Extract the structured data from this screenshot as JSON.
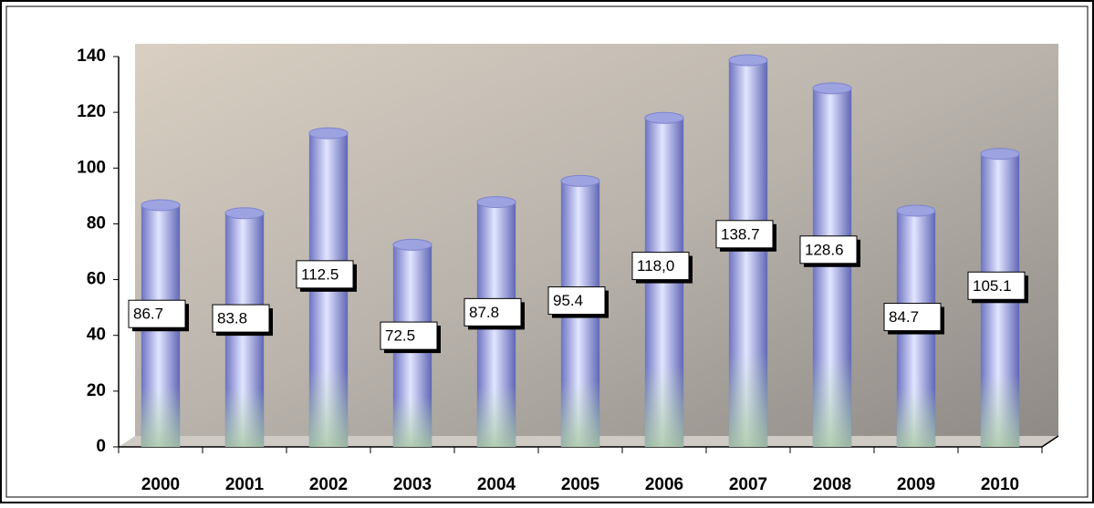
{
  "chart_data": {
    "type": "bar",
    "categories": [
      "2000",
      "2001",
      "2002",
      "2003",
      "2004",
      "2005",
      "2006",
      "2007",
      "2008",
      "2009",
      "2010"
    ],
    "values": [
      86.7,
      83.8,
      112.5,
      72.5,
      87.8,
      95.4,
      118.0,
      138.7,
      128.6,
      84.7,
      105.1
    ],
    "value_labels": [
      "86.7",
      "83.8",
      "112.5",
      "72.5",
      "87.8",
      "95.4",
      "118,0",
      "138.7",
      "128.6",
      "84.7",
      "105.1"
    ],
    "color": "#8a90d8",
    "ylim": [
      0,
      140
    ],
    "yticks": [
      0,
      20,
      40,
      60,
      80,
      100,
      120,
      140
    ]
  }
}
